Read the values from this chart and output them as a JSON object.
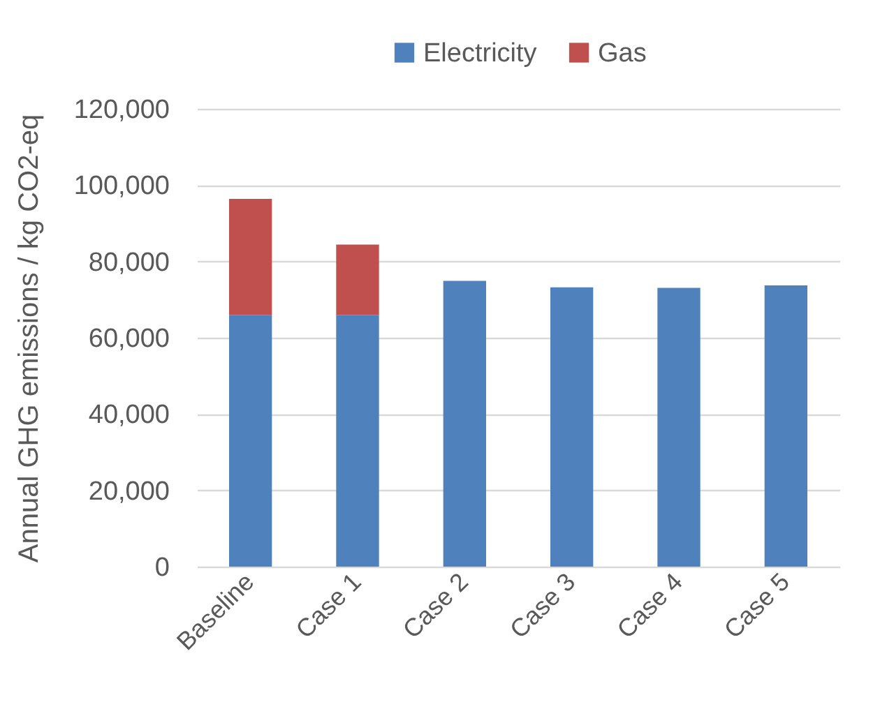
{
  "chart_data": {
    "type": "bar",
    "stacked": true,
    "ylabel": "Annual GHG emissions / kg CO2-eq",
    "categories": [
      "Baseline",
      "Case 1",
      "Case 2",
      "Case 3",
      "Case 4",
      "Case 5"
    ],
    "series": [
      {
        "name": "Electricity",
        "color": "#4f81bd",
        "values": [
          66000,
          66000,
          74900,
          73200,
          73100,
          73700
        ]
      },
      {
        "name": "Gas",
        "color": "#c0504d",
        "values": [
          30400,
          18400,
          0,
          0,
          0,
          0
        ]
      }
    ],
    "ylim": [
      0,
      120000
    ],
    "yticks": [
      0,
      {
        "value": 20000,
        "label": "20,000"
      },
      {
        "value": 40000,
        "label": "40,000"
      },
      {
        "value": 60000,
        "label": "60,000"
      },
      {
        "value": 80000,
        "label": "80,000"
      },
      {
        "value": 100000,
        "label": "100,000"
      },
      {
        "value": 120000,
        "label": "120,000"
      }
    ],
    "grid": "y",
    "legend": "top"
  }
}
